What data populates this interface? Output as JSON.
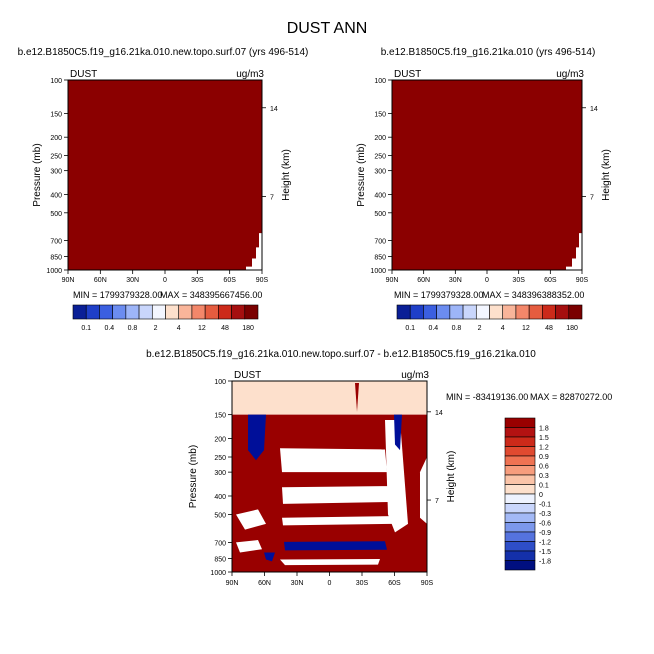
{
  "title": "DUST ANN",
  "colors": {
    "panel_fill": "#8b0000",
    "red_dark": "#990000",
    "blue_dark": "#000f99",
    "light_peach": "#fde0cc"
  },
  "chart_data": [
    {
      "type": "heatmap",
      "panel": "left",
      "title": "b.e12.B1850C5.f19_g16.21ka.010.new.topo.surf.07 (yrs 496-514)",
      "variable_label": "DUST",
      "units_label": "ug/m3",
      "ylabel": "Pressure (mb)",
      "ylabel_right": "Height (km)",
      "x_ticks": [
        "90N",
        "60N",
        "30N",
        "0",
        "30S",
        "60S",
        "90S"
      ],
      "y_ticks": [
        "100",
        "150",
        "200",
        "250",
        "300",
        "400",
        "500",
        "700",
        "850",
        "1000"
      ],
      "y_ticks_right": [
        "14",
        "7"
      ],
      "y_scale": "log, reversed",
      "stats": {
        "min_text": "MIN = 1799379328.00",
        "max_text": "MAX = 348395667456.00"
      },
      "colorbar": {
        "labels": [
          "0.1",
          "0.4",
          "0.8",
          "2",
          "4",
          "12",
          "48",
          "180"
        ],
        "colors": [
          "#0a1f96",
          "#1f3fc8",
          "#3b5fe0",
          "#6b8cf0",
          "#9db5f8",
          "#c9d6fc",
          "#f3f6ff",
          "#fde0cc",
          "#f9b59a",
          "#f3876a",
          "#e55c3f",
          "#cc2a1a",
          "#a50f0f",
          "#7a0000"
        ]
      },
      "note": ""
    },
    {
      "type": "heatmap",
      "panel": "right",
      "title": "b.e12.B1850C5.f19_g16.21ka.010 (yrs 496-514)",
      "variable_label": "DUST",
      "units_label": "ug/m3",
      "ylabel": "Pressure (mb)",
      "ylabel_right": "Height (km)",
      "x_ticks": [
        "90N",
        "60N",
        "30N",
        "0",
        "30S",
        "60S",
        "90S"
      ],
      "y_ticks": [
        "100",
        "150",
        "200",
        "250",
        "300",
        "400",
        "500",
        "700",
        "850",
        "1000"
      ],
      "y_ticks_right": [
        "14",
        "7"
      ],
      "y_scale": "log, reversed",
      "stats": {
        "min_text": "MIN = 1799379328.00",
        "max_text": "MAX = 348396388352.00"
      },
      "colorbar": {
        "labels": [
          "0.1",
          "0.4",
          "0.8",
          "2",
          "4",
          "12",
          "48",
          "180"
        ],
        "colors": [
          "#0a1f96",
          "#1f3fc8",
          "#3b5fe0",
          "#6b8cf0",
          "#9db5f8",
          "#c9d6fc",
          "#f3f6ff",
          "#fde0cc",
          "#f9b59a",
          "#f3876a",
          "#e55c3f",
          "#cc2a1a",
          "#a50f0f",
          "#7a0000"
        ]
      }
    },
    {
      "type": "heatmap",
      "panel": "difference",
      "title": "b.e12.B1850C5.f19_g16.21ka.010.new.topo.surf.07 - b.e12.B1850C5.f19_g16.21ka.010",
      "variable_label": "DUST",
      "units_label": "ug/m3",
      "ylabel": "Pressure (mb)",
      "ylabel_right": "Height (km)",
      "x_ticks": [
        "90N",
        "60N",
        "30N",
        "0",
        "30S",
        "60S",
        "90S"
      ],
      "y_ticks": [
        "100",
        "150",
        "200",
        "250",
        "300",
        "400",
        "500",
        "700",
        "850",
        "1000"
      ],
      "y_ticks_right": [
        "14",
        "7"
      ],
      "y_scale": "log, reversed",
      "stats": {
        "min_text": "MIN = -83419136.00",
        "max_text": "MAX = 82870272.00"
      },
      "colorbar": {
        "labels": [
          "1.8",
          "1.5",
          "1.2",
          "0.9",
          "0.6",
          "0.3",
          "0.1",
          "0",
          "-0.1",
          "-0.3",
          "-0.6",
          "-0.9",
          "-1.2",
          "-1.5",
          "-1.8"
        ],
        "colors": [
          "#990000",
          "#b31212",
          "#cc2a1a",
          "#e04a30",
          "#ef7353",
          "#f79d7d",
          "#fbc4a8",
          "#fde0cc",
          "#eef3ff",
          "#c9d6fc",
          "#a3b9f6",
          "#7c98ec",
          "#5573de",
          "#2e4ec8",
          "#1430aa",
          "#000f80"
        ]
      }
    }
  ]
}
